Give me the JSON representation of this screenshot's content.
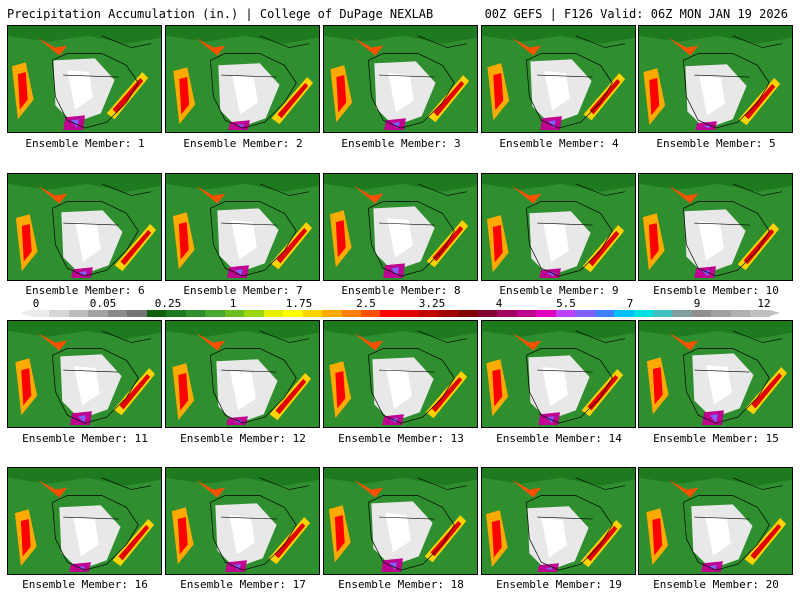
{
  "header": {
    "left_title": "Precipitation Accumulation (in.) | College of DuPage NEXLAB",
    "right_title": "00Z GEFS | F126 Valid: 06Z MON JAN 19 2026"
  },
  "panels": [
    {
      "label": "Ensemble Member: 1"
    },
    {
      "label": "Ensemble Member: 2"
    },
    {
      "label": "Ensemble Member: 3"
    },
    {
      "label": "Ensemble Member: 4"
    },
    {
      "label": "Ensemble Member: 5"
    },
    {
      "label": "Ensemble Member: 6"
    },
    {
      "label": "Ensemble Member: 7"
    },
    {
      "label": "Ensemble Member: 8"
    },
    {
      "label": "Ensemble Member: 9"
    },
    {
      "label": "Ensemble Member: 10"
    },
    {
      "label": "Ensemble Member: 11"
    },
    {
      "label": "Ensemble Member: 12"
    },
    {
      "label": "Ensemble Member: 13"
    },
    {
      "label": "Ensemble Member: 14"
    },
    {
      "label": "Ensemble Member: 15"
    },
    {
      "label": "Ensemble Member: 16"
    },
    {
      "label": "Ensemble Member: 17"
    },
    {
      "label": "Ensemble Member: 18"
    },
    {
      "label": "Ensemble Member: 19"
    },
    {
      "label": "Ensemble Member: 20"
    }
  ],
  "colorbar": {
    "tick_labels": [
      "0",
      "0.05",
      "0.25",
      "1",
      "1.75",
      "2.5",
      "3.25",
      "4",
      "5.5",
      "7",
      "9",
      "12"
    ],
    "colors": [
      "#ececec",
      "#d6d6d6",
      "#bdbdbd",
      "#a3a3a3",
      "#8a8a8a",
      "#747474",
      "#0f5f0f",
      "#1e7a1e",
      "#2f8f2f",
      "#47a72f",
      "#6cbf1f",
      "#9ad60f",
      "#e6f000",
      "#ffff00",
      "#ffd200",
      "#ffaa00",
      "#ff7f00",
      "#ff5000",
      "#ff0000",
      "#e00000",
      "#c00000",
      "#a00000",
      "#800000",
      "#800030",
      "#a00060",
      "#c00090",
      "#e000c0",
      "#c040ff",
      "#8060ff",
      "#4080ff",
      "#00c0ff",
      "#00e0e0",
      "#40c0c0",
      "#80a0a0",
      "#909090",
      "#a0a0a0",
      "#b0b0b0",
      "#c0c0c0"
    ]
  }
}
